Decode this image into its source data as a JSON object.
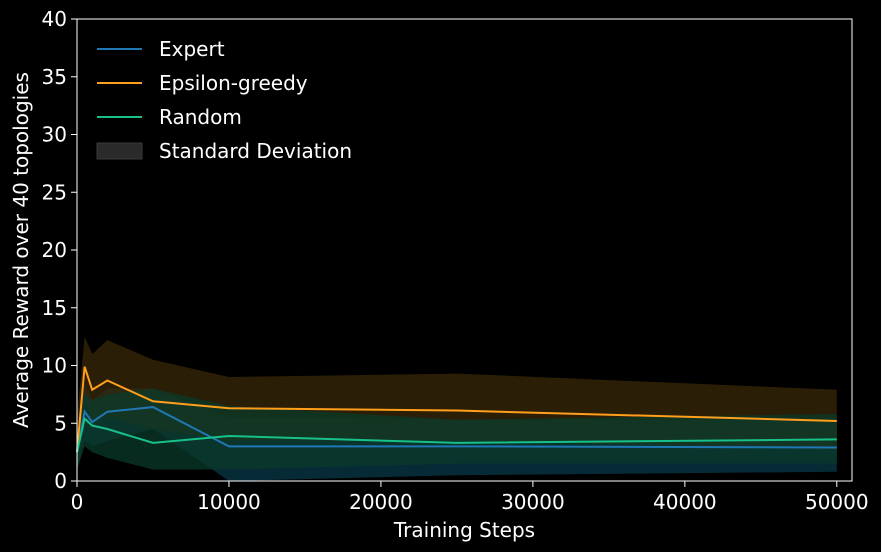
{
  "chart_data": {
    "type": "line",
    "xlabel": "Training Steps",
    "ylabel": "Average Reward over 40 topologies",
    "xlim": [
      0,
      51000
    ],
    "ylim": [
      0,
      40
    ],
    "x_ticks": [
      0,
      10000,
      20000,
      30000,
      40000,
      50000
    ],
    "y_ticks": [
      0,
      5,
      10,
      15,
      20,
      25,
      30,
      35,
      40
    ],
    "grid": false,
    "legend_position": "top-left",
    "x": [
      0,
      500,
      1000,
      2000,
      5000,
      10000,
      25000,
      50000
    ],
    "series": [
      {
        "name": "Expert",
        "color": "#1f77b4",
        "fill_color": "#083a4a",
        "values": [
          2.5,
          6.0,
          5.1,
          6.0,
          6.4,
          3.0,
          3.0,
          2.9
        ],
        "lower": [
          1.0,
          3.5,
          3.0,
          3.5,
          4.5,
          0.0,
          0.5,
          0.8
        ],
        "upper": [
          4.0,
          8.5,
          7.0,
          8.0,
          8.0,
          5.5,
          5.3,
          5.3
        ]
      },
      {
        "name": "Epsilon-greedy",
        "color": "#ff9f1c",
        "fill_color": "#3a2808",
        "values": [
          2.5,
          9.9,
          7.9,
          8.7,
          6.9,
          6.3,
          6.1,
          5.2
        ],
        "lower": [
          1.0,
          7.5,
          5.0,
          5.5,
          4.5,
          3.5,
          3.5,
          2.7
        ],
        "upper": [
          5.5,
          12.5,
          11.0,
          12.2,
          10.5,
          9.0,
          9.3,
          7.9
        ]
      },
      {
        "name": "Random",
        "color": "#17c18a",
        "fill_color": "#0b3a2a",
        "values": [
          2.5,
          5.4,
          4.8,
          4.5,
          3.3,
          3.9,
          3.3,
          3.6
        ],
        "lower": [
          1.0,
          3.0,
          2.5,
          2.0,
          1.0,
          1.0,
          1.5,
          1.5
        ],
        "upper": [
          4.0,
          7.5,
          7.0,
          7.5,
          8.0,
          6.5,
          5.3,
          5.8
        ]
      }
    ],
    "legend": [
      {
        "label": "Expert",
        "kind": "line",
        "color": "#1f77b4"
      },
      {
        "label": "Epsilon-greedy",
        "kind": "line",
        "color": "#ff9f1c"
      },
      {
        "label": "Random",
        "kind": "line",
        "color": "#17c18a"
      },
      {
        "label": "Standard Deviation",
        "kind": "patch",
        "color": "#2a2a2a"
      }
    ]
  }
}
